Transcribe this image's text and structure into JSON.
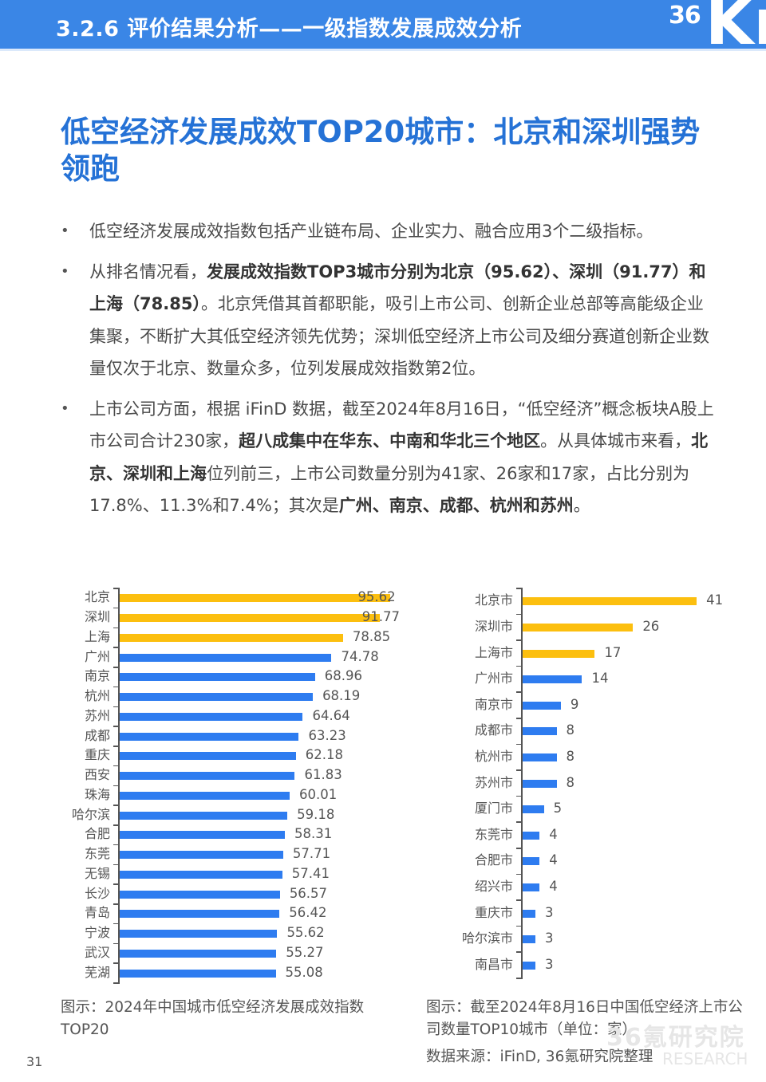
{
  "header": {
    "title": "3.2.6 评价结果分析——一级指数发展成效分析",
    "logo_36": "36",
    "logo_kr": "Kr",
    "background_color": "#3a86e6"
  },
  "main_title": "低空经济发展成效TOP20城市：北京和深圳强势领跑",
  "bullets": [
    {
      "segments": [
        {
          "text": "低空经济发展成效指数包括产业链布局、企业实力、融合应用3个二级指标。",
          "bold": false
        }
      ]
    },
    {
      "segments": [
        {
          "text": "从排名情况看，",
          "bold": false
        },
        {
          "text": "发展成效指数TOP3城市分别为北京（95.62）、深圳（91.77）和上海（78.85）",
          "bold": true
        },
        {
          "text": "。北京凭借其首都职能，吸引上市公司、创新企业总部等高能级企业集聚，不断扩大其低空经济领先优势；深圳低空经济上市公司及细分赛道创新企业数量仅次于北京、数量众多，位列发展成效指数第2位。",
          "bold": false
        }
      ]
    },
    {
      "segments": [
        {
          "text": "上市公司方面，根据 iFinD 数据，截至2024年8月16日，“低空经济”概念板块A股上市公司合计230家，",
          "bold": false
        },
        {
          "text": "超八成集中在华东、中南和华北三个地区",
          "bold": true
        },
        {
          "text": "。从具体城市来看，",
          "bold": false
        },
        {
          "text": "北京、深圳和上海",
          "bold": true
        },
        {
          "text": "位列前三，上市公司数量分别为41家、26家和17家，占比分别为17.8%、11.3%和7.4%；其次是",
          "bold": false
        },
        {
          "text": "广州、南京、成都、杭州和苏州",
          "bold": true
        },
        {
          "text": "。",
          "bold": false
        }
      ]
    }
  ],
  "colors": {
    "highlight": "#fcbf0f",
    "normal": "#2e7cf0",
    "title": "#2572d6"
  },
  "chart_data": [
    {
      "type": "bar",
      "orientation": "horizontal",
      "title": "图示：2024年中国城市低空经济发展成效指数TOP20",
      "categories": [
        "北京",
        "深圳",
        "上海",
        "广州",
        "南京",
        "杭州",
        "苏州",
        "成都",
        "重庆",
        "西安",
        "珠海",
        "哈尔滨",
        "合肥",
        "东莞",
        "无锡",
        "长沙",
        "青岛",
        "宁波",
        "武汉",
        "芜湖"
      ],
      "values": [
        95.62,
        91.77,
        78.85,
        74.78,
        68.96,
        68.19,
        64.64,
        63.23,
        62.18,
        61.83,
        60.01,
        59.18,
        58.31,
        57.71,
        57.41,
        56.57,
        56.42,
        55.62,
        55.27,
        55.08
      ],
      "labels": [
        "95.62",
        "91.77",
        "78.85",
        "74.78",
        "68.96",
        "68.19",
        "64.64",
        "63.23",
        "62.18",
        "61.83",
        "60.01",
        "59.18",
        "58.31",
        "57.71",
        "57.41",
        "56.57",
        "56.42",
        "55.62",
        "55.27",
        "55.08"
      ],
      "highlight_count": 3,
      "xlabel": "",
      "ylabel": "",
      "xlim": [
        0,
        100
      ],
      "grid": false,
      "legend": "none"
    },
    {
      "type": "bar",
      "orientation": "horizontal",
      "title": "图示：截至2024年8月16日中国低空经济上市公司数量TOP10城市（单位：家）",
      "categories": [
        "北京市",
        "深圳市",
        "上海市",
        "广州市",
        "南京市",
        "成都市",
        "杭州市",
        "苏州市",
        "厦门市",
        "东莞市",
        "合肥市",
        "绍兴市",
        "重庆市",
        "哈尔滨市",
        "南昌市"
      ],
      "values": [
        41,
        26,
        17,
        14,
        9,
        8,
        8,
        8,
        5,
        4,
        4,
        4,
        3,
        3,
        3
      ],
      "labels": [
        "41",
        "26",
        "17",
        "14",
        "9",
        "8",
        "8",
        "8",
        "5",
        "4",
        "4",
        "4",
        "3",
        "3",
        "3"
      ],
      "highlight_count": 3,
      "unit": "家",
      "xlabel": "",
      "ylabel": "",
      "xlim": [
        0,
        45
      ],
      "grid": false,
      "legend": "none"
    }
  ],
  "captions": {
    "left": "图示：2024年中国城市低空经济发展成效指数TOP20",
    "right": "图示：截至2024年8月16日中国低空经济上市公司数量TOP10城市（单位：家）",
    "source": "数据来源：iFinD, 36氪研究院整理"
  },
  "watermark": {
    "cn": "36氪研究院",
    "en": "RESEARCH"
  },
  "page_number": "31"
}
